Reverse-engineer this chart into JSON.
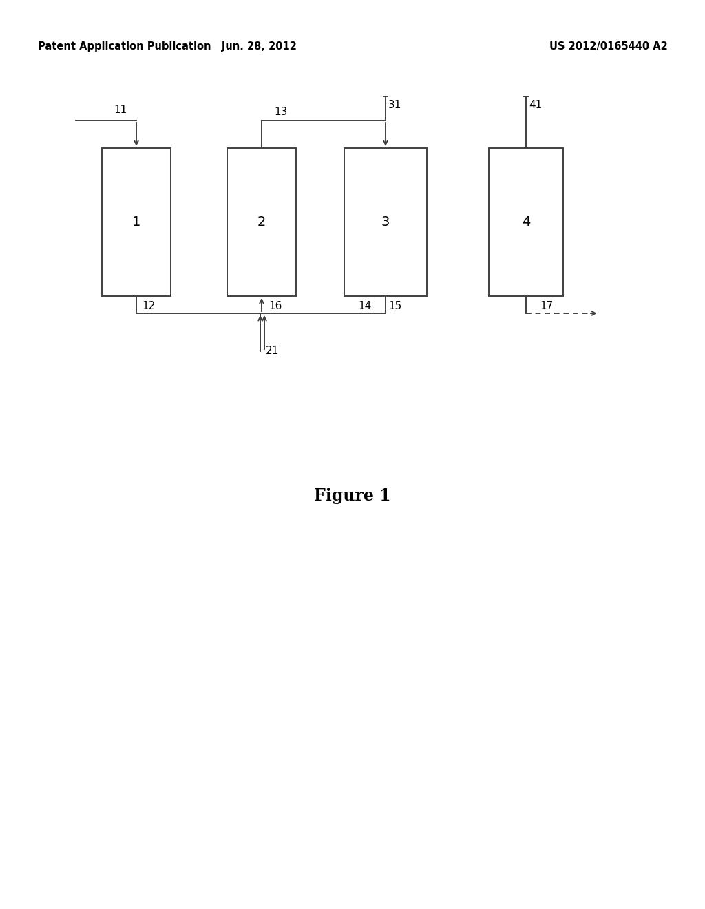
{
  "background_color": "#ffffff",
  "header_left": "Patent Application Publication   Jun. 28, 2012",
  "header_right": "US 2012/0165440 A2",
  "figure_label": "Figure 1",
  "line_color": "#404040",
  "font_size_header": 10.5,
  "font_size_label": 11,
  "font_size_number": 14,
  "font_size_figure": 17
}
